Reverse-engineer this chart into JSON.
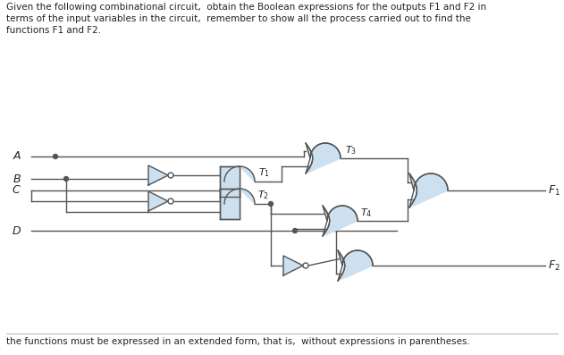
{
  "title_text": "Given the following combinational circuit,  obtain the Boolean expressions for the outputs F1 and F2 in\nterms of the input variables in the circuit,  remember to show all the process carried out to find the\nfunctions F1 and F2.",
  "footer_text": "the functions must be expressed in an extended form, that is,  without expressions in parentheses.",
  "bg_color": "#ffffff",
  "gate_fill": "#cce0f0",
  "gate_edge": "#555555",
  "line_color": "#555555",
  "text_color": "#222222",
  "lw": 1.0
}
